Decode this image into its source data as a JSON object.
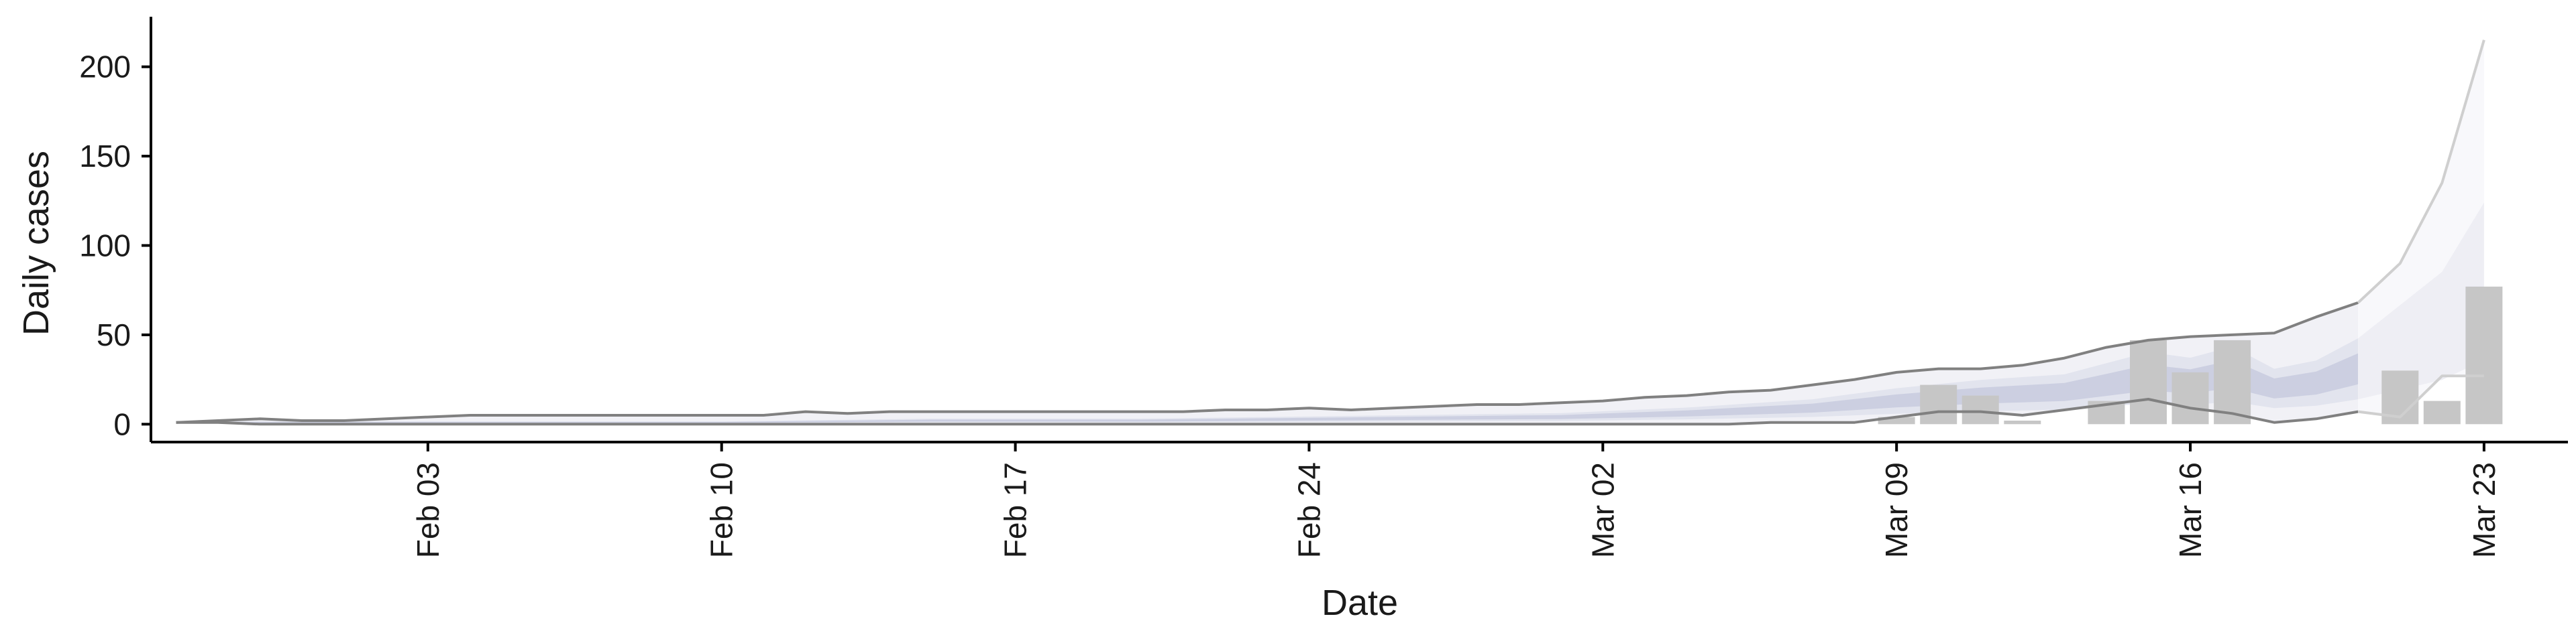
{
  "chart_data": {
    "type": "bar",
    "title": "",
    "xlabel": "Date",
    "ylabel": "Daily cases",
    "ylim": [
      -10,
      228
    ],
    "y_ticks": [
      0,
      50,
      100,
      150,
      200
    ],
    "x_ticks": [
      {
        "label": "Feb 03",
        "day": 3
      },
      {
        "label": "Feb 10",
        "day": 10
      },
      {
        "label": "Feb 17",
        "day": 17
      },
      {
        "label": "Feb 24",
        "day": 24
      },
      {
        "label": "Mar 02",
        "day": 31
      },
      {
        "label": "Mar 09",
        "day": 38
      },
      {
        "label": "Mar 16",
        "day": 45
      },
      {
        "label": "Mar 23",
        "day": 52
      }
    ],
    "x_range_days": [
      -3.6,
      54
    ],
    "day_zero": "Jan 31",
    "colors": {
      "bar": "#c6c6c6",
      "band_outer": "#f1f1f6",
      "band_mid": "#e2e4ee",
      "band_inner": "#c4c8dc",
      "band_proj_outer": "#f8f8fb",
      "band_proj_mid": "#eeeef4",
      "bound_line": "#808080",
      "bound_line_proj": "#cfcfcf"
    },
    "observed_cases": [
      {
        "day": 38,
        "value": 4
      },
      {
        "day": 39,
        "value": 22
      },
      {
        "day": 40,
        "value": 16
      },
      {
        "day": 41,
        "value": 2
      },
      {
        "day": 43,
        "value": 13
      },
      {
        "day": 44,
        "value": 47
      },
      {
        "day": 45,
        "value": 29
      },
      {
        "day": 46,
        "value": 47
      },
      {
        "day": 50,
        "value": 30
      },
      {
        "day": 51,
        "value": 13
      },
      {
        "day": 52,
        "value": 77
      }
    ],
    "series": [
      {
        "name": "upper bound",
        "days": [
          -3,
          -2,
          -1,
          0,
          1,
          2,
          3,
          4,
          5,
          6,
          7,
          8,
          9,
          10,
          11,
          12,
          13,
          14,
          15,
          16,
          17,
          18,
          19,
          20,
          21,
          22,
          23,
          24,
          25,
          26,
          27,
          28,
          29,
          30,
          31,
          32,
          33,
          34,
          35,
          36,
          37,
          38,
          39,
          40,
          41,
          42,
          43,
          44,
          45,
          46,
          47,
          48,
          49,
          50,
          51,
          52
        ],
        "values": [
          1,
          2,
          3,
          2,
          2,
          3,
          4,
          5,
          5,
          5,
          5,
          5,
          5,
          5,
          5,
          7,
          6,
          7,
          7,
          7,
          7,
          7,
          7,
          7,
          7,
          8,
          8,
          9,
          8,
          9,
          10,
          11,
          11,
          12,
          13,
          15,
          16,
          18,
          19,
          22,
          25,
          29,
          31,
          31,
          33,
          37,
          43,
          47,
          49,
          50,
          51,
          60,
          68,
          90,
          135,
          215
        ]
      },
      {
        "name": "lower bound",
        "days": [
          -3,
          -2,
          -1,
          0,
          1,
          2,
          3,
          4,
          5,
          6,
          7,
          8,
          9,
          10,
          11,
          12,
          13,
          14,
          15,
          16,
          17,
          18,
          19,
          20,
          21,
          22,
          23,
          24,
          25,
          26,
          27,
          28,
          29,
          30,
          31,
          32,
          33,
          34,
          35,
          36,
          37,
          38,
          39,
          40,
          41,
          42,
          43,
          44,
          45,
          46,
          47,
          48,
          49,
          50,
          51,
          52
        ],
        "values": [
          1,
          1,
          0,
          0,
          0,
          0,
          0,
          0,
          0,
          0,
          0,
          0,
          0,
          0,
          0,
          0,
          0,
          0,
          0,
          0,
          0,
          0,
          0,
          0,
          0,
          0,
          0,
          0,
          0,
          0,
          0,
          0,
          0,
          0,
          0,
          0,
          0,
          0,
          1,
          1,
          1,
          4,
          7,
          7,
          5,
          8,
          11,
          14,
          9,
          6,
          1,
          3,
          7,
          4,
          27,
          27
        ]
      },
      {
        "name": "median",
        "days": [
          -3,
          0,
          5,
          10,
          15,
          20,
          25,
          30,
          33,
          36,
          38,
          40,
          42,
          44,
          45,
          46,
          47,
          48,
          49,
          50,
          51,
          52
        ],
        "values": [
          1,
          1,
          1,
          1,
          2,
          2,
          3,
          4,
          6,
          9,
          13,
          16,
          18,
          26,
          24,
          28,
          20,
          23,
          31,
          43,
          55,
          80
        ]
      }
    ]
  }
}
